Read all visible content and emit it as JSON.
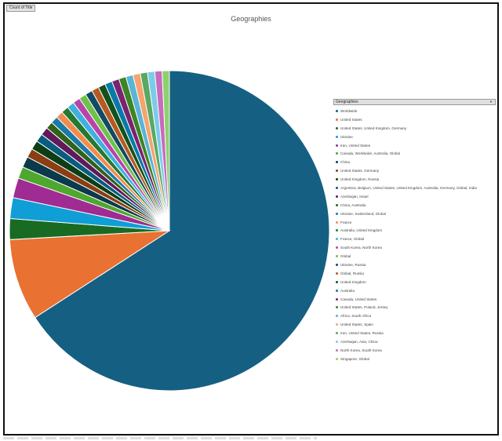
{
  "field_button": {
    "label": "Count of Title"
  },
  "chart_data": {
    "type": "pie",
    "title": "Geographies",
    "legend_title": "Geographies",
    "legend_position": "right",
    "start_angle_deg": 0,
    "categories": [
      "Worldwide",
      "United States",
      "United States, United Kingdom, Germany",
      "Ukraine",
      "Iran, United States",
      "Canada, Worldwide, Australia, Global",
      "China",
      "United States, Germany",
      "United Kingdom, Russia",
      "Argentina, Belgium, United States, United Kingdom, Australia, Germany, Global, India",
      "Azerbaijan, Israel",
      "China, Australia",
      "Ukraine, Switzerland, Global",
      "France",
      "Australia, United Kingdom",
      "France, Global",
      "South Korea, North Korea",
      "Global",
      "Ukraine, Russia",
      "Global, Russia",
      "United Kingdom",
      "Australia",
      "Canada, United States",
      "United States, Poland, Jersey",
      "Africa, South Africa",
      "United States, Spain",
      "Iran, United States, Russia",
      "Azerbaijan, Asia, China",
      "North Korea, South Korea",
      "Singapore, Global"
    ],
    "values": [
      72,
      9,
      2.3,
      2.3,
      2.2,
      1.3,
      1.2,
      1,
      1,
      0.9,
      0.9,
      0.8,
      0.8,
      0.8,
      0.8,
      0.8,
      0.8,
      0.8,
      0.8,
      0.8,
      0.8,
      0.8,
      0.8,
      0.8,
      0.8,
      0.8,
      0.8,
      0.8,
      0.8,
      0.8
    ],
    "colors": [
      "#156082",
      "#e97132",
      "#196b24",
      "#0f9ed5",
      "#a02b93",
      "#4ea72e",
      "#0b3a4c",
      "#8a3e12",
      "#0d3e16",
      "#075d7e",
      "#60195a",
      "#2e631a",
      "#1a7aa6",
      "#f28b4d",
      "#237a31",
      "#3fb0e0",
      "#b844aa",
      "#6fc14c",
      "#124b63",
      "#b75a21",
      "#14521d",
      "#0a7aa8",
      "#7a2372",
      "#3d8424",
      "#5ab4d8",
      "#f4a46e",
      "#5aa862",
      "#7ccbea",
      "#c76bbd",
      "#8fd06e"
    ]
  }
}
